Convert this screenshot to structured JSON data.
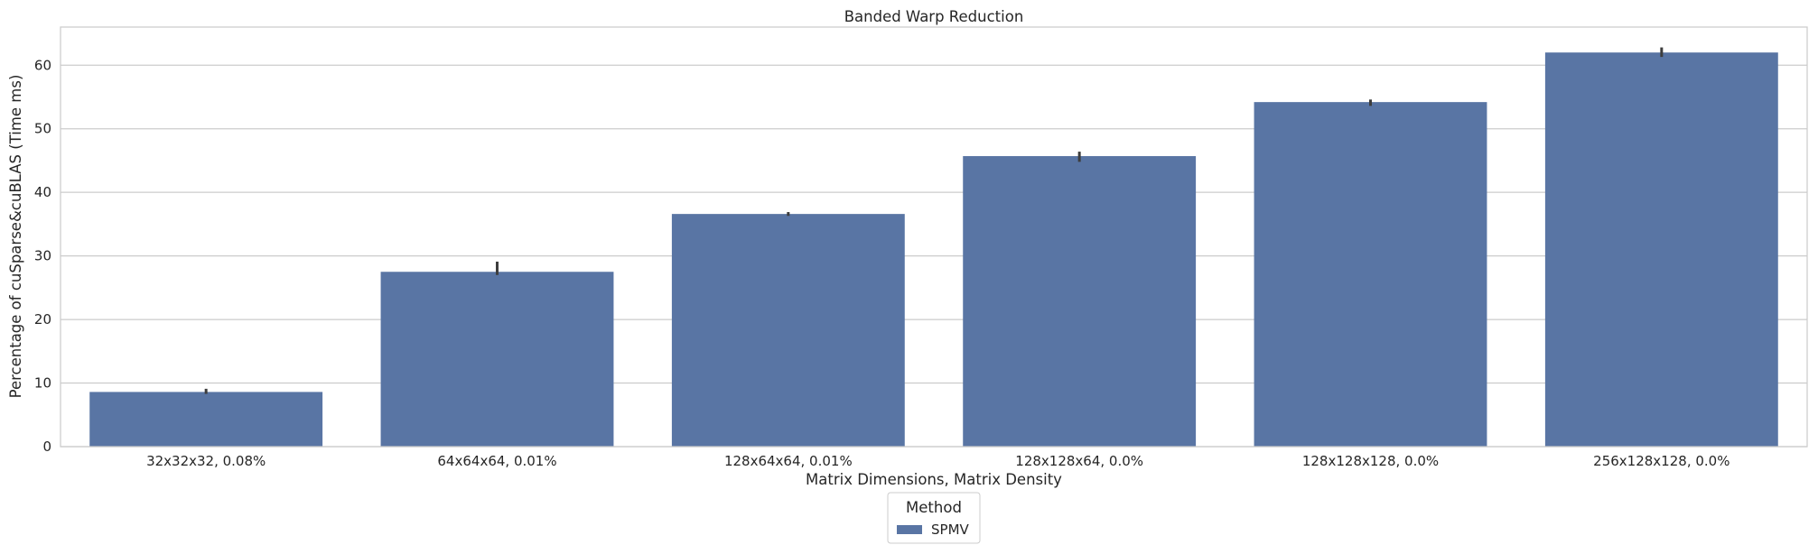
{
  "chart_data": {
    "type": "bar",
    "title": "Banded Warp Reduction",
    "xlabel": "Matrix Dimensions, Matrix Density",
    "ylabel": "Percentage of cuSparse&cuBLAS (Time ms)",
    "categories": [
      "32x32x32, 0.08%",
      "64x64x64, 0.01%",
      "128x64x64, 0.01%",
      "128x128x64, 0.0%",
      "128x128x128, 0.0%",
      "256x128x128, 0.0%"
    ],
    "series": [
      {
        "name": "SPMV",
        "values": [
          8.6,
          27.5,
          36.6,
          45.7,
          54.2,
          62.0
        ],
        "error_low": [
          8.3,
          27.0,
          36.3,
          44.8,
          53.6,
          61.3
        ],
        "error_high": [
          9.1,
          29.1,
          36.9,
          46.4,
          54.6,
          62.8
        ],
        "color": "#5975a4"
      }
    ],
    "ylim": [
      0,
      66
    ],
    "yticks": [
      0,
      10,
      20,
      30,
      40,
      50,
      60
    ],
    "grid": "horizontal",
    "legend": {
      "title": "Method",
      "placement": "bottom-center"
    }
  }
}
